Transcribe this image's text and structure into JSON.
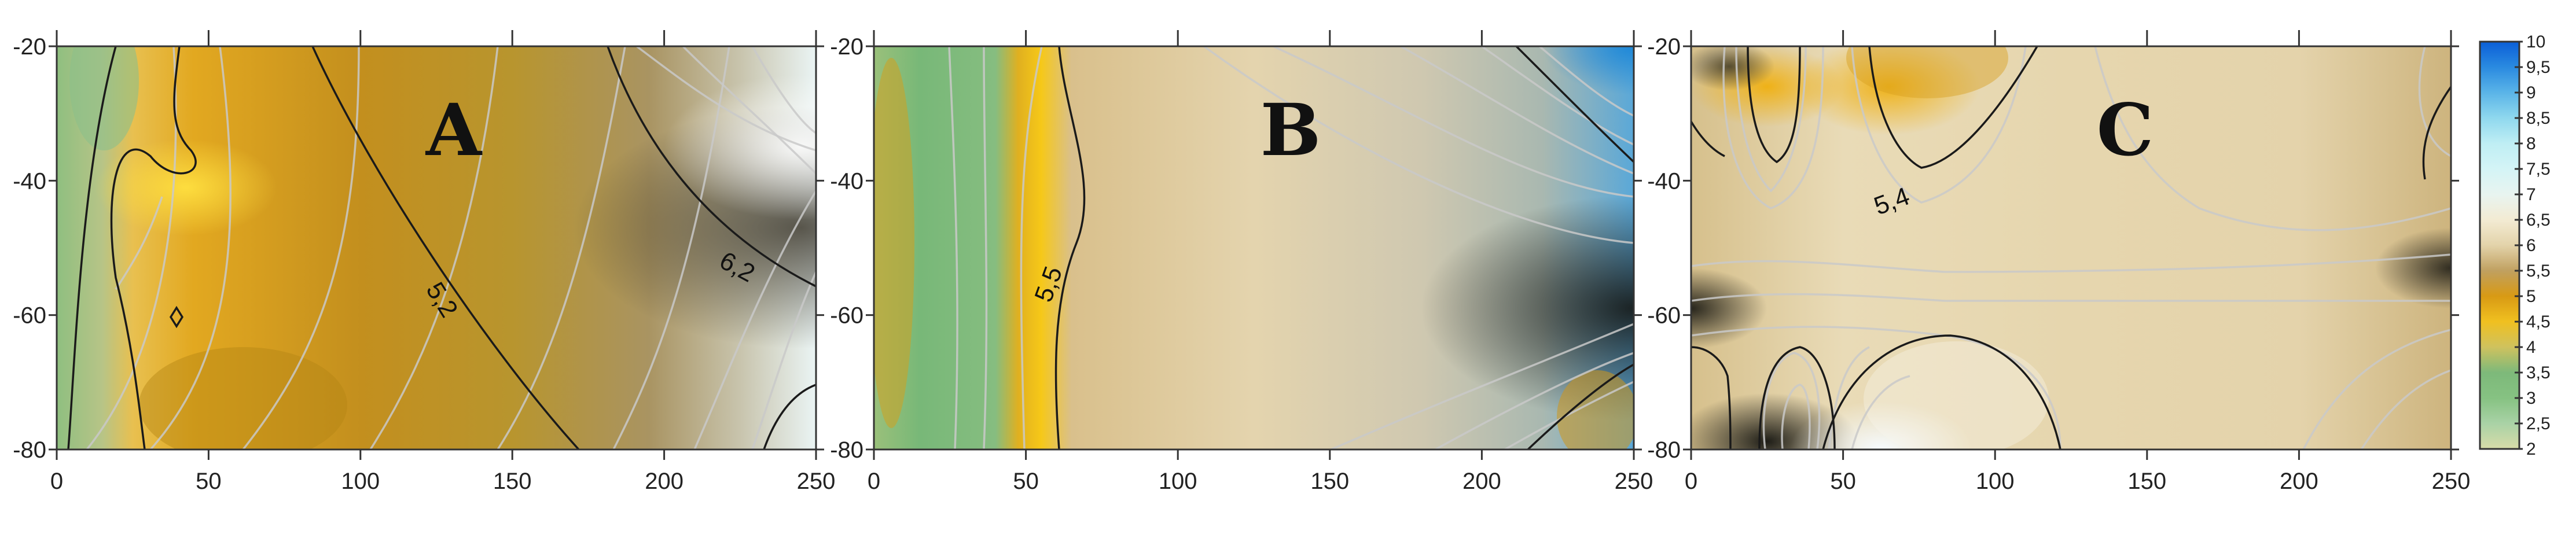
{
  "chart_data": [
    {
      "type": "heatmap",
      "panel_label": "A",
      "x_ticks": [
        0,
        50,
        100,
        150,
        200,
        250
      ],
      "y_ticks": [
        -20,
        -40,
        -60,
        -80
      ],
      "xlim": [
        0,
        250
      ],
      "ylim": [
        -80,
        -20
      ],
      "contour_labels": [
        {
          "text": "5,2",
          "x": 120,
          "y": -57
        },
        {
          "text": "6,2",
          "x": 222,
          "y": -52
        }
      ]
    },
    {
      "type": "heatmap",
      "panel_label": "B",
      "x_ticks": [
        0,
        50,
        100,
        150,
        200,
        250
      ],
      "y_ticks": [
        -20,
        -40,
        -60,
        -80
      ],
      "xlim": [
        0,
        250
      ],
      "ylim": [
        -80,
        -20
      ],
      "contour_labels": [
        {
          "text": "5,5",
          "x": 62,
          "y": -57
        }
      ]
    },
    {
      "type": "heatmap",
      "panel_label": "C",
      "x_ticks": [
        0,
        50,
        100,
        150,
        200,
        250
      ],
      "y_ticks": [
        -20,
        -40,
        -60,
        -80
      ],
      "xlim": [
        0,
        250
      ],
      "ylim": [
        -80,
        -20
      ],
      "contour_labels": [
        {
          "text": "5,4",
          "x": 65,
          "y": -43
        }
      ]
    }
  ],
  "colorbar": {
    "labels": [
      "10",
      "9,5",
      "9",
      "8,5",
      "8",
      "7,5",
      "7",
      "6,5",
      "6",
      "5,5",
      "5",
      "4,5",
      "4",
      "3,5",
      "3",
      "2,5",
      "2"
    ],
    "range": [
      2,
      10
    ],
    "stops": [
      {
        "value": 2,
        "color": "#d8dca8"
      },
      {
        "value": 2.5,
        "color": "#a9d2a6"
      },
      {
        "value": 3,
        "color": "#86c282"
      },
      {
        "value": 3.5,
        "color": "#7db97a"
      },
      {
        "value": 4,
        "color": "#cfc25e"
      },
      {
        "value": 4.5,
        "color": "#f0c020"
      },
      {
        "value": 5,
        "color": "#d89a14"
      },
      {
        "value": 5.5,
        "color": "#c0a060"
      },
      {
        "value": 6,
        "color": "#e3d3aa"
      },
      {
        "value": 6.5,
        "color": "#f3ebd3"
      },
      {
        "value": 7,
        "color": "#e8f4f0"
      },
      {
        "value": 7.5,
        "color": "#d4f4f6"
      },
      {
        "value": 8,
        "color": "#bfeef4"
      },
      {
        "value": 8.5,
        "color": "#8fd8ee"
      },
      {
        "value": 9,
        "color": "#5ab4e8"
      },
      {
        "value": 9.5,
        "color": "#2a8ae0"
      },
      {
        "value": 10,
        "color": "#0b5fd8"
      }
    ]
  }
}
